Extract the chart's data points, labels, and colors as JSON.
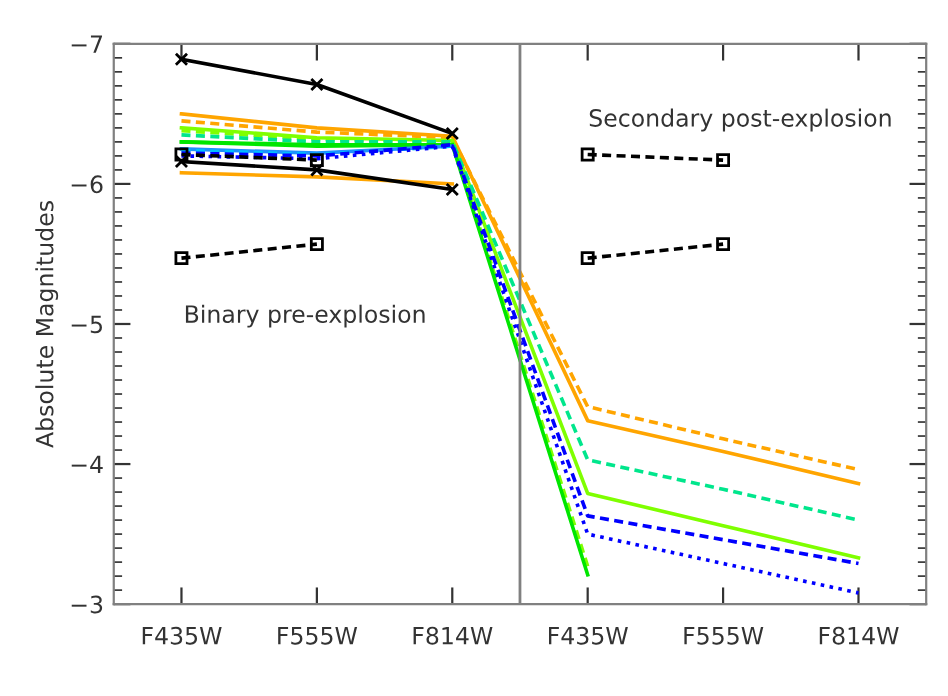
{
  "chart_data": {
    "type": "line",
    "ylabel": "Absolute Magnitudes",
    "categories": [
      "F435W",
      "F555W",
      "F814W",
      "F435W",
      "F555W",
      "F814W"
    ],
    "ylim": [
      -3,
      -7
    ],
    "yticks": [
      {
        "value": -7,
        "label": "−7"
      },
      {
        "value": -6,
        "label": "−6"
      },
      {
        "value": -5,
        "label": "−5"
      },
      {
        "value": -4,
        "label": "−4"
      },
      {
        "value": -3,
        "label": "−3"
      }
    ],
    "grid": false,
    "legend": false,
    "annotations": [
      "Binary pre-explosion",
      "Secondary post-explosion"
    ],
    "series": [
      {
        "color": "#ffa500",
        "line_style": "solid",
        "marker": "none",
        "values": [
          -6.5,
          -6.4,
          -6.34,
          -4.31,
          -4.09,
          -3.86
        ]
      },
      {
        "color": "#ffa500",
        "line_style": "dashed",
        "marker": "none",
        "values": [
          -6.45,
          -6.37,
          -6.33,
          -4.41,
          -4.18,
          -3.96
        ]
      },
      {
        "color": "#ffa500",
        "line_style": "solid",
        "marker": "none",
        "values": [
          -6.08,
          -6.05,
          -6.0,
          null,
          null,
          null
        ]
      },
      {
        "color": "#7fff00",
        "line_style": "solid",
        "marker": "none",
        "values": [
          -6.4,
          -6.33,
          -6.31,
          -3.79,
          -3.56,
          -3.33
        ]
      },
      {
        "color": "#7fff00",
        "line_style": "dashed",
        "marker": "none",
        "values": [
          -6.38,
          -6.32,
          -6.3,
          -3.27,
          null,
          null
        ]
      },
      {
        "color": "#00e68c",
        "line_style": "dashed",
        "marker": "none",
        "values": [
          -6.35,
          -6.3,
          -6.3,
          -4.03,
          -3.82,
          -3.6
        ]
      },
      {
        "color": "#00e600",
        "line_style": "solid",
        "marker": "none",
        "values": [
          -6.3,
          -6.28,
          -6.28,
          -3.21,
          null,
          null
        ]
      },
      {
        "color": "#00e600",
        "line_style": "solid",
        "marker": "none",
        "values": [
          -6.3,
          -6.27,
          -6.28,
          null,
          null,
          null
        ]
      },
      {
        "color": "#1e90ff",
        "line_style": "solid",
        "marker": "none",
        "values": [
          -6.25,
          -6.22,
          -6.27,
          null,
          null,
          null
        ]
      },
      {
        "color": "#00bfff",
        "line_style": "dashed",
        "marker": "none",
        "values": [
          -6.24,
          -6.21,
          -6.27,
          null,
          null,
          null
        ]
      },
      {
        "color": "#0000ff",
        "line_style": "dashed",
        "marker": "none",
        "values": [
          -6.22,
          -6.2,
          -6.28,
          -3.63,
          -3.46,
          -3.29
        ]
      },
      {
        "color": "#0000ff",
        "line_style": "dotted",
        "marker": "none",
        "values": [
          -6.2,
          -6.18,
          -6.27,
          -3.5,
          -3.29,
          -3.08
        ]
      },
      {
        "color": "#000000",
        "line_style": "solid",
        "marker": "cross",
        "values": [
          -6.89,
          -6.71,
          -6.36,
          null,
          null,
          null
        ]
      },
      {
        "color": "#000000",
        "line_style": "solid",
        "marker": "cross",
        "values": [
          -6.16,
          -6.1,
          -5.96,
          null,
          null,
          null
        ]
      },
      {
        "color": "#000000",
        "line_style": "dashed",
        "marker": "square",
        "values": [
          -6.21,
          -6.17,
          null,
          -6.21,
          -6.17,
          null
        ]
      },
      {
        "color": "#000000",
        "line_style": "dashed",
        "marker": "square",
        "values": [
          -5.47,
          -5.57,
          null,
          -5.47,
          -5.57,
          null
        ]
      }
    ]
  }
}
